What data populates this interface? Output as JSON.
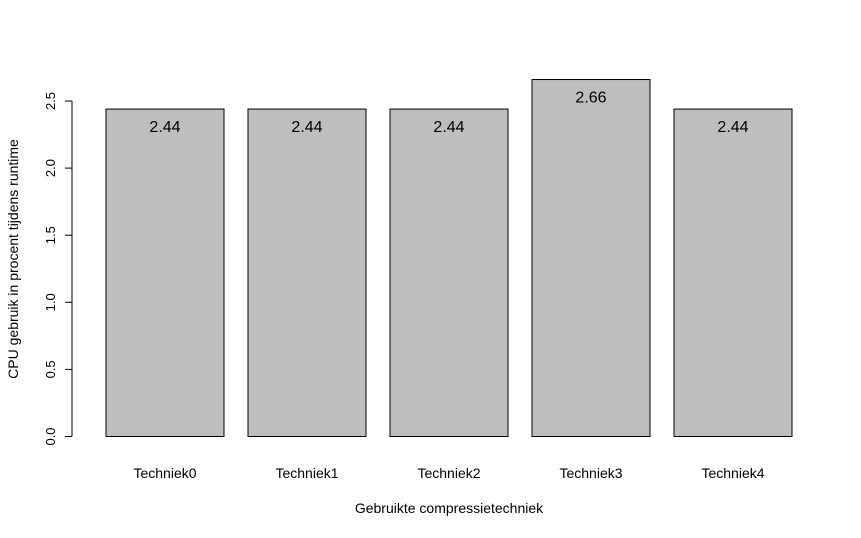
{
  "chart_data": {
    "type": "bar",
    "categories": [
      "Techniek0",
      "Techniek1",
      "Techniek2",
      "Techniek3",
      "Techniek4"
    ],
    "values": [
      2.44,
      2.44,
      2.44,
      2.66,
      2.44
    ],
    "data_labels": [
      "2.44",
      "2.44",
      "2.44",
      "2.66",
      "2.44"
    ],
    "title": "",
    "xlabel": "Gebruikte compressietechniek",
    "ylabel": "CPU gebruik in procent tijdens runtime",
    "ylim": [
      0,
      2.5
    ],
    "yticks": [
      0.0,
      0.5,
      1.0,
      1.5,
      2.0,
      2.5
    ],
    "ytick_labels": [
      "0.0",
      "0.5",
      "1.0",
      "1.5",
      "2.0",
      "2.5"
    ],
    "grid": false,
    "legend": "none",
    "bar_color": "#bebebe",
    "bar_border_color": "#000000"
  }
}
